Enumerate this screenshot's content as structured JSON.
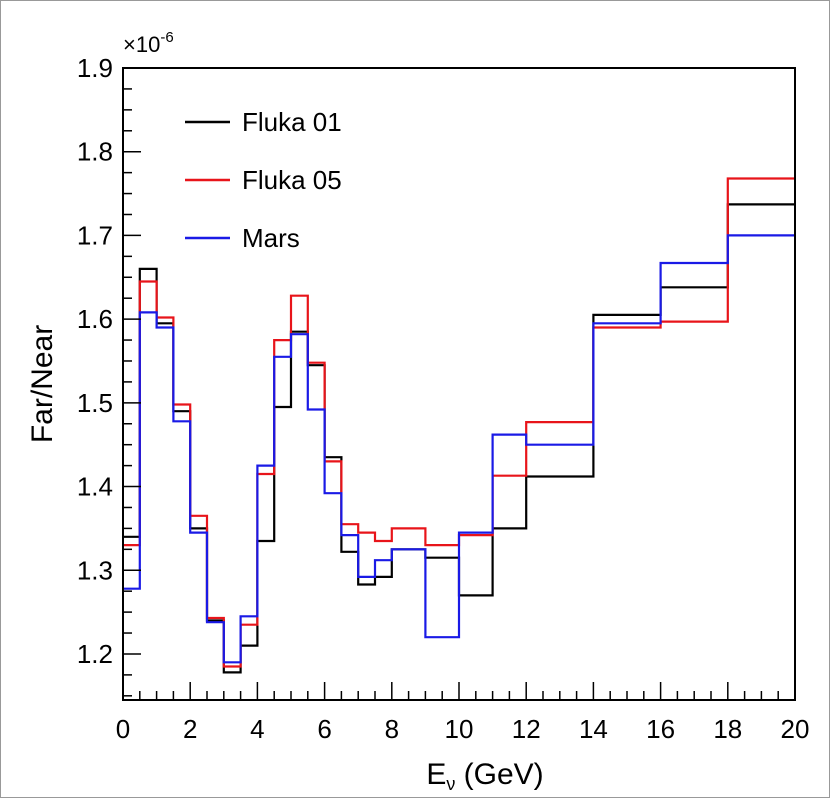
{
  "chart_data": {
    "type": "line",
    "style": "step",
    "xlabel": "E",
    "xlabel_sub": "ν",
    "xlabel_unit": " (GeV)",
    "ylabel": "Far/Near",
    "y_scale_base": "×10",
    "y_scale_exp": "-6",
    "xlim": [
      0,
      20
    ],
    "ylim": [
      1.145,
      1.9
    ],
    "x_ticks": [
      0,
      2,
      4,
      6,
      8,
      10,
      12,
      14,
      16,
      18,
      20
    ],
    "x_tick_labels": [
      "0",
      "2",
      "4",
      "6",
      "8",
      "10",
      "12",
      "14",
      "16",
      "18",
      "20"
    ],
    "y_ticks": [
      1.2,
      1.3,
      1.4,
      1.5,
      1.6,
      1.7,
      1.8,
      1.9
    ],
    "y_tick_labels": [
      "1.2",
      "1.3",
      "1.4",
      "1.5",
      "1.6",
      "1.7",
      "1.8",
      "1.9"
    ],
    "bin_edges": [
      0,
      0.5,
      1,
      1.5,
      2,
      2.5,
      3,
      3.5,
      4,
      4.5,
      5,
      5.5,
      6,
      6.5,
      7,
      7.5,
      8,
      9,
      10,
      11,
      12,
      14,
      16,
      18,
      20
    ],
    "legend_position": "top-left",
    "series": [
      {
        "name": "Fluka 01",
        "color": "#000000",
        "values": [
          1.34,
          1.66,
          1.595,
          1.49,
          1.35,
          1.24,
          1.178,
          1.21,
          1.335,
          1.495,
          1.585,
          1.545,
          1.435,
          1.322,
          1.283,
          1.292,
          1.325,
          1.315,
          1.27,
          1.35,
          1.412,
          1.605,
          1.638,
          1.737
        ]
      },
      {
        "name": "Fluka 05",
        "color": "#e8141a",
        "values": [
          1.33,
          1.645,
          1.602,
          1.498,
          1.365,
          1.243,
          1.185,
          1.235,
          1.415,
          1.575,
          1.628,
          1.548,
          1.43,
          1.355,
          1.345,
          1.335,
          1.35,
          1.33,
          1.342,
          1.413,
          1.477,
          1.59,
          1.597,
          1.768
        ]
      },
      {
        "name": "Mars",
        "color": "#1a1ae6",
        "values": [
          1.278,
          1.608,
          1.59,
          1.478,
          1.345,
          1.238,
          1.19,
          1.245,
          1.425,
          1.555,
          1.582,
          1.492,
          1.392,
          1.342,
          1.292,
          1.312,
          1.325,
          1.22,
          1.345,
          1.462,
          1.45,
          1.595,
          1.667,
          1.7
        ]
      }
    ]
  }
}
